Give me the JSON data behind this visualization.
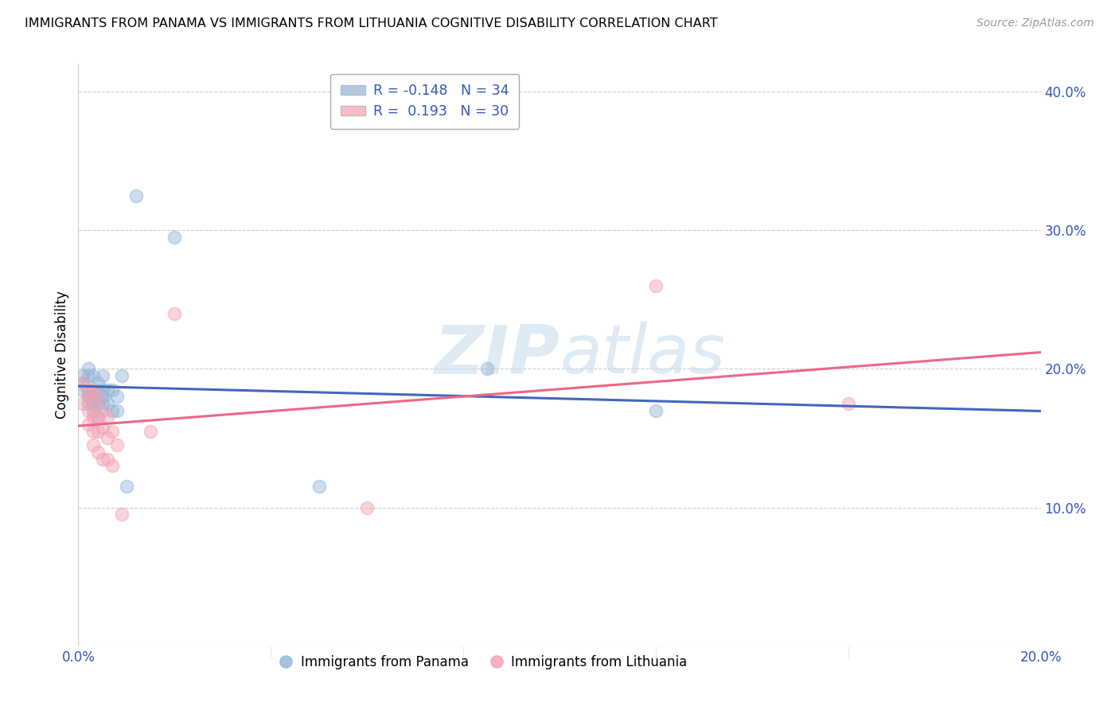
{
  "title": "IMMIGRANTS FROM PANAMA VS IMMIGRANTS FROM LITHUANIA COGNITIVE DISABILITY CORRELATION CHART",
  "source_text": "Source: ZipAtlas.com",
  "ylabel": "Cognitive Disability",
  "xlim": [
    0.0,
    0.2
  ],
  "ylim": [
    0.0,
    0.42
  ],
  "xticks": [
    0.0,
    0.04,
    0.08,
    0.12,
    0.16,
    0.2
  ],
  "xtick_labels": [
    "0.0%",
    "",
    "",
    "",
    "",
    "20.0%"
  ],
  "yticks": [
    0.1,
    0.2,
    0.3,
    0.4
  ],
  "ytick_labels": [
    "10.0%",
    "20.0%",
    "30.0%",
    "40.0%"
  ],
  "legend_blue_label": "R = -0.148   N = 34",
  "legend_pink_label": "R =  0.193   N = 30",
  "legend_series1": "Immigrants from Panama",
  "legend_series2": "Immigrants from Lithuania",
  "watermark_part1": "ZIP",
  "watermark_part2": "atlas",
  "blue_color": "#92B4D9",
  "pink_color": "#F4A0B0",
  "blue_line_color": "#4466BB",
  "pink_line_color": "#EE6688",
  "panama_x": [
    0.001,
    0.001,
    0.001,
    0.002,
    0.002,
    0.002,
    0.002,
    0.002,
    0.003,
    0.003,
    0.003,
    0.003,
    0.003,
    0.004,
    0.004,
    0.004,
    0.004,
    0.005,
    0.005,
    0.005,
    0.005,
    0.006,
    0.006,
    0.007,
    0.007,
    0.008,
    0.008,
    0.009,
    0.01,
    0.012,
    0.02,
    0.05,
    0.085,
    0.12
  ],
  "panama_y": [
    0.195,
    0.19,
    0.185,
    0.2,
    0.195,
    0.185,
    0.18,
    0.175,
    0.195,
    0.185,
    0.18,
    0.175,
    0.17,
    0.19,
    0.185,
    0.175,
    0.165,
    0.195,
    0.185,
    0.18,
    0.175,
    0.185,
    0.175,
    0.185,
    0.17,
    0.18,
    0.17,
    0.195,
    0.115,
    0.325,
    0.295,
    0.115,
    0.2,
    0.17
  ],
  "lithuania_x": [
    0.001,
    0.001,
    0.002,
    0.002,
    0.002,
    0.002,
    0.003,
    0.003,
    0.003,
    0.003,
    0.003,
    0.004,
    0.004,
    0.004,
    0.004,
    0.005,
    0.005,
    0.005,
    0.006,
    0.006,
    0.006,
    0.007,
    0.007,
    0.008,
    0.009,
    0.015,
    0.02,
    0.06,
    0.12,
    0.16
  ],
  "lithuania_y": [
    0.19,
    0.175,
    0.185,
    0.18,
    0.17,
    0.16,
    0.185,
    0.175,
    0.165,
    0.155,
    0.145,
    0.18,
    0.165,
    0.155,
    0.14,
    0.17,
    0.158,
    0.135,
    0.165,
    0.15,
    0.135,
    0.155,
    0.13,
    0.145,
    0.095,
    0.155,
    0.24,
    0.1,
    0.26,
    0.175
  ]
}
